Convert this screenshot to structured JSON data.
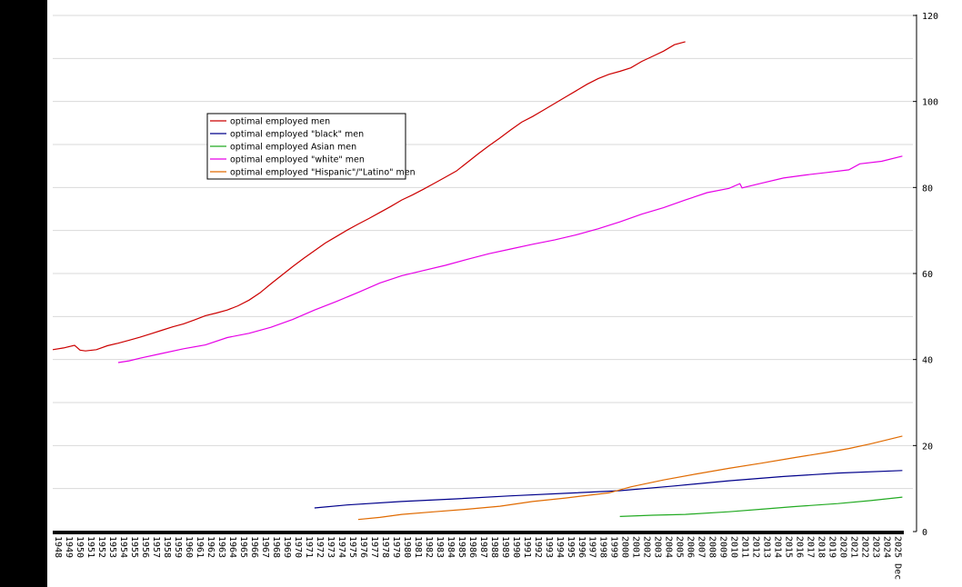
{
  "chart_data": {
    "type": "line",
    "title": "",
    "xlabel": "",
    "ylabel": "",
    "xlim": [
      1948,
      2025.95
    ],
    "ylim": [
      0,
      120
    ],
    "y_ticks": [
      0,
      20,
      40,
      60,
      80,
      100,
      120
    ],
    "x_tick_labels": [
      "1948",
      "1949",
      "1950",
      "1951",
      "1952",
      "1953",
      "1954",
      "1955",
      "1956",
      "1957",
      "1958",
      "1959",
      "1960",
      "1961",
      "1962",
      "1963",
      "1964",
      "1965",
      "1966",
      "1967",
      "1968",
      "1969",
      "1970",
      "1971",
      "1972",
      "1973",
      "1974",
      "1975",
      "1976",
      "1977",
      "1978",
      "1979",
      "1980",
      "1981",
      "1982",
      "1983",
      "1984",
      "1985",
      "1986",
      "1987",
      "1988",
      "1989",
      "1990",
      "1991",
      "1992",
      "1993",
      "1994",
      "1995",
      "1996",
      "1997",
      "1998",
      "1999",
      "2000",
      "2001",
      "2002",
      "2003",
      "2004",
      "2005",
      "2006",
      "2007",
      "2008",
      "2009",
      "2010",
      "2011",
      "2012",
      "2013",
      "2014",
      "2015",
      "2016",
      "2017",
      "2018",
      "2019",
      "2020",
      "2021",
      "2022",
      "2023",
      "2024",
      "2025"
    ],
    "x_end_label": "2025 Dec",
    "grid": true,
    "legend_position": "upper-left",
    "colors": {
      "background": "#ffffff",
      "frame": "#000000",
      "grid": "#d9d9d9"
    },
    "series": [
      {
        "name": "optimal employed men",
        "color": "#cc0000",
        "points": [
          [
            1948,
            42.3
          ],
          [
            1949,
            42.7
          ],
          [
            1950,
            43.3
          ],
          [
            1950.5,
            42.2
          ],
          [
            1951,
            42
          ],
          [
            1952,
            42.3
          ],
          [
            1953,
            43.2
          ],
          [
            1954,
            43.8
          ],
          [
            1955,
            44.5
          ],
          [
            1956,
            45.2
          ],
          [
            1957,
            46
          ],
          [
            1958,
            46.8
          ],
          [
            1959,
            47.6
          ],
          [
            1960,
            48.3
          ],
          [
            1961,
            49.2
          ],
          [
            1962,
            50.2
          ],
          [
            1963,
            50.8
          ],
          [
            1964,
            51.5
          ],
          [
            1965,
            52.5
          ],
          [
            1966,
            53.8
          ],
          [
            1967,
            55.5
          ],
          [
            1968,
            57.6
          ],
          [
            1969,
            59.6
          ],
          [
            1970,
            61.6
          ],
          [
            1971,
            63.5
          ],
          [
            1972,
            65.3
          ],
          [
            1973,
            67.1
          ],
          [
            1974,
            68.6
          ],
          [
            1975,
            70.1
          ],
          [
            1976,
            71.5
          ],
          [
            1977,
            72.8
          ],
          [
            1978,
            74.2
          ],
          [
            1979,
            75.6
          ],
          [
            1980,
            77.1
          ],
          [
            1981,
            78.3
          ],
          [
            1982,
            79.6
          ],
          [
            1983,
            81
          ],
          [
            1984,
            82.4
          ],
          [
            1985,
            83.8
          ],
          [
            1986,
            85.8
          ],
          [
            1987,
            87.8
          ],
          [
            1988,
            89.7
          ],
          [
            1989,
            91.5
          ],
          [
            1990,
            93.4
          ],
          [
            1991,
            95.2
          ],
          [
            1992,
            96.5
          ],
          [
            1993,
            98
          ],
          [
            1994,
            99.5
          ],
          [
            1995,
            101
          ],
          [
            1996,
            102.5
          ],
          [
            1997,
            104
          ],
          [
            1998,
            105.3
          ],
          [
            1999,
            106.3
          ],
          [
            2000,
            107
          ],
          [
            2001,
            107.8
          ],
          [
            2002,
            109.3
          ],
          [
            2003,
            110.5
          ],
          [
            2004,
            111.7
          ],
          [
            2005,
            113.2
          ],
          [
            2006,
            113.9
          ]
        ]
      },
      {
        "name": "optimal employed \"black\" men",
        "color": "#00008b",
        "points": [
          [
            1972,
            5.5
          ],
          [
            1975,
            6.2
          ],
          [
            1980,
            7
          ],
          [
            1985,
            7.6
          ],
          [
            1990,
            8.3
          ],
          [
            1995,
            8.9
          ],
          [
            2000,
            9.5
          ],
          [
            2005,
            10.6
          ],
          [
            2010,
            11.8
          ],
          [
            2015,
            12.8
          ],
          [
            2020,
            13.6
          ],
          [
            2025.9,
            14.2
          ]
        ]
      },
      {
        "name": "optimal employed Asian men",
        "color": "#22aa22",
        "points": [
          [
            2000,
            3.5
          ],
          [
            2003,
            3.8
          ],
          [
            2006,
            4
          ],
          [
            2010,
            4.6
          ],
          [
            2013,
            5.2
          ],
          [
            2016,
            5.8
          ],
          [
            2020,
            6.5
          ],
          [
            2023,
            7.2
          ],
          [
            2025.9,
            8
          ]
        ]
      },
      {
        "name": "optimal employed \"white\" men",
        "color": "#e600e6",
        "points": [
          [
            1954,
            39.3
          ],
          [
            1955,
            39.7
          ],
          [
            1956,
            40.3
          ],
          [
            1958,
            41.4
          ],
          [
            1960,
            42.5
          ],
          [
            1962,
            43.4
          ],
          [
            1964,
            45.1
          ],
          [
            1966,
            46.1
          ],
          [
            1968,
            47.5
          ],
          [
            1970,
            49.3
          ],
          [
            1972,
            51.5
          ],
          [
            1974,
            53.5
          ],
          [
            1976,
            55.6
          ],
          [
            1978,
            57.8
          ],
          [
            1980,
            59.5
          ],
          [
            1982,
            60.7
          ],
          [
            1984,
            61.9
          ],
          [
            1986,
            63.3
          ],
          [
            1988,
            64.6
          ],
          [
            1990,
            65.7
          ],
          [
            1992,
            66.8
          ],
          [
            1994,
            67.8
          ],
          [
            1996,
            69
          ],
          [
            1998,
            70.4
          ],
          [
            2000,
            72
          ],
          [
            2002,
            73.8
          ],
          [
            2004,
            75.3
          ],
          [
            2006,
            77.1
          ],
          [
            2008,
            78.8
          ],
          [
            2010,
            79.8
          ],
          [
            2011,
            80.9
          ],
          [
            2011.2,
            79.9
          ],
          [
            2013,
            81
          ],
          [
            2015,
            82.2
          ],
          [
            2017,
            82.9
          ],
          [
            2019,
            83.5
          ],
          [
            2021,
            84.1
          ],
          [
            2022,
            85.5
          ],
          [
            2024,
            86.1
          ],
          [
            2025.9,
            87.3
          ]
        ]
      },
      {
        "name": "optimal employed \"Hispanic\"/\"Latino\" men",
        "color": "#e06a00",
        "points": [
          [
            1976,
            2.8
          ],
          [
            1978,
            3.3
          ],
          [
            1980,
            4
          ],
          [
            1983,
            4.6
          ],
          [
            1986,
            5.2
          ],
          [
            1989,
            5.9
          ],
          [
            1992,
            7
          ],
          [
            1995,
            7.8
          ],
          [
            1999,
            9
          ],
          [
            2001,
            10.4
          ],
          [
            2004,
            12
          ],
          [
            2007,
            13.4
          ],
          [
            2010,
            14.7
          ],
          [
            2013,
            15.9
          ],
          [
            2016,
            17.2
          ],
          [
            2019,
            18.4
          ],
          [
            2021,
            19.3
          ],
          [
            2023,
            20.4
          ],
          [
            2025.9,
            22.2
          ]
        ]
      }
    ]
  }
}
